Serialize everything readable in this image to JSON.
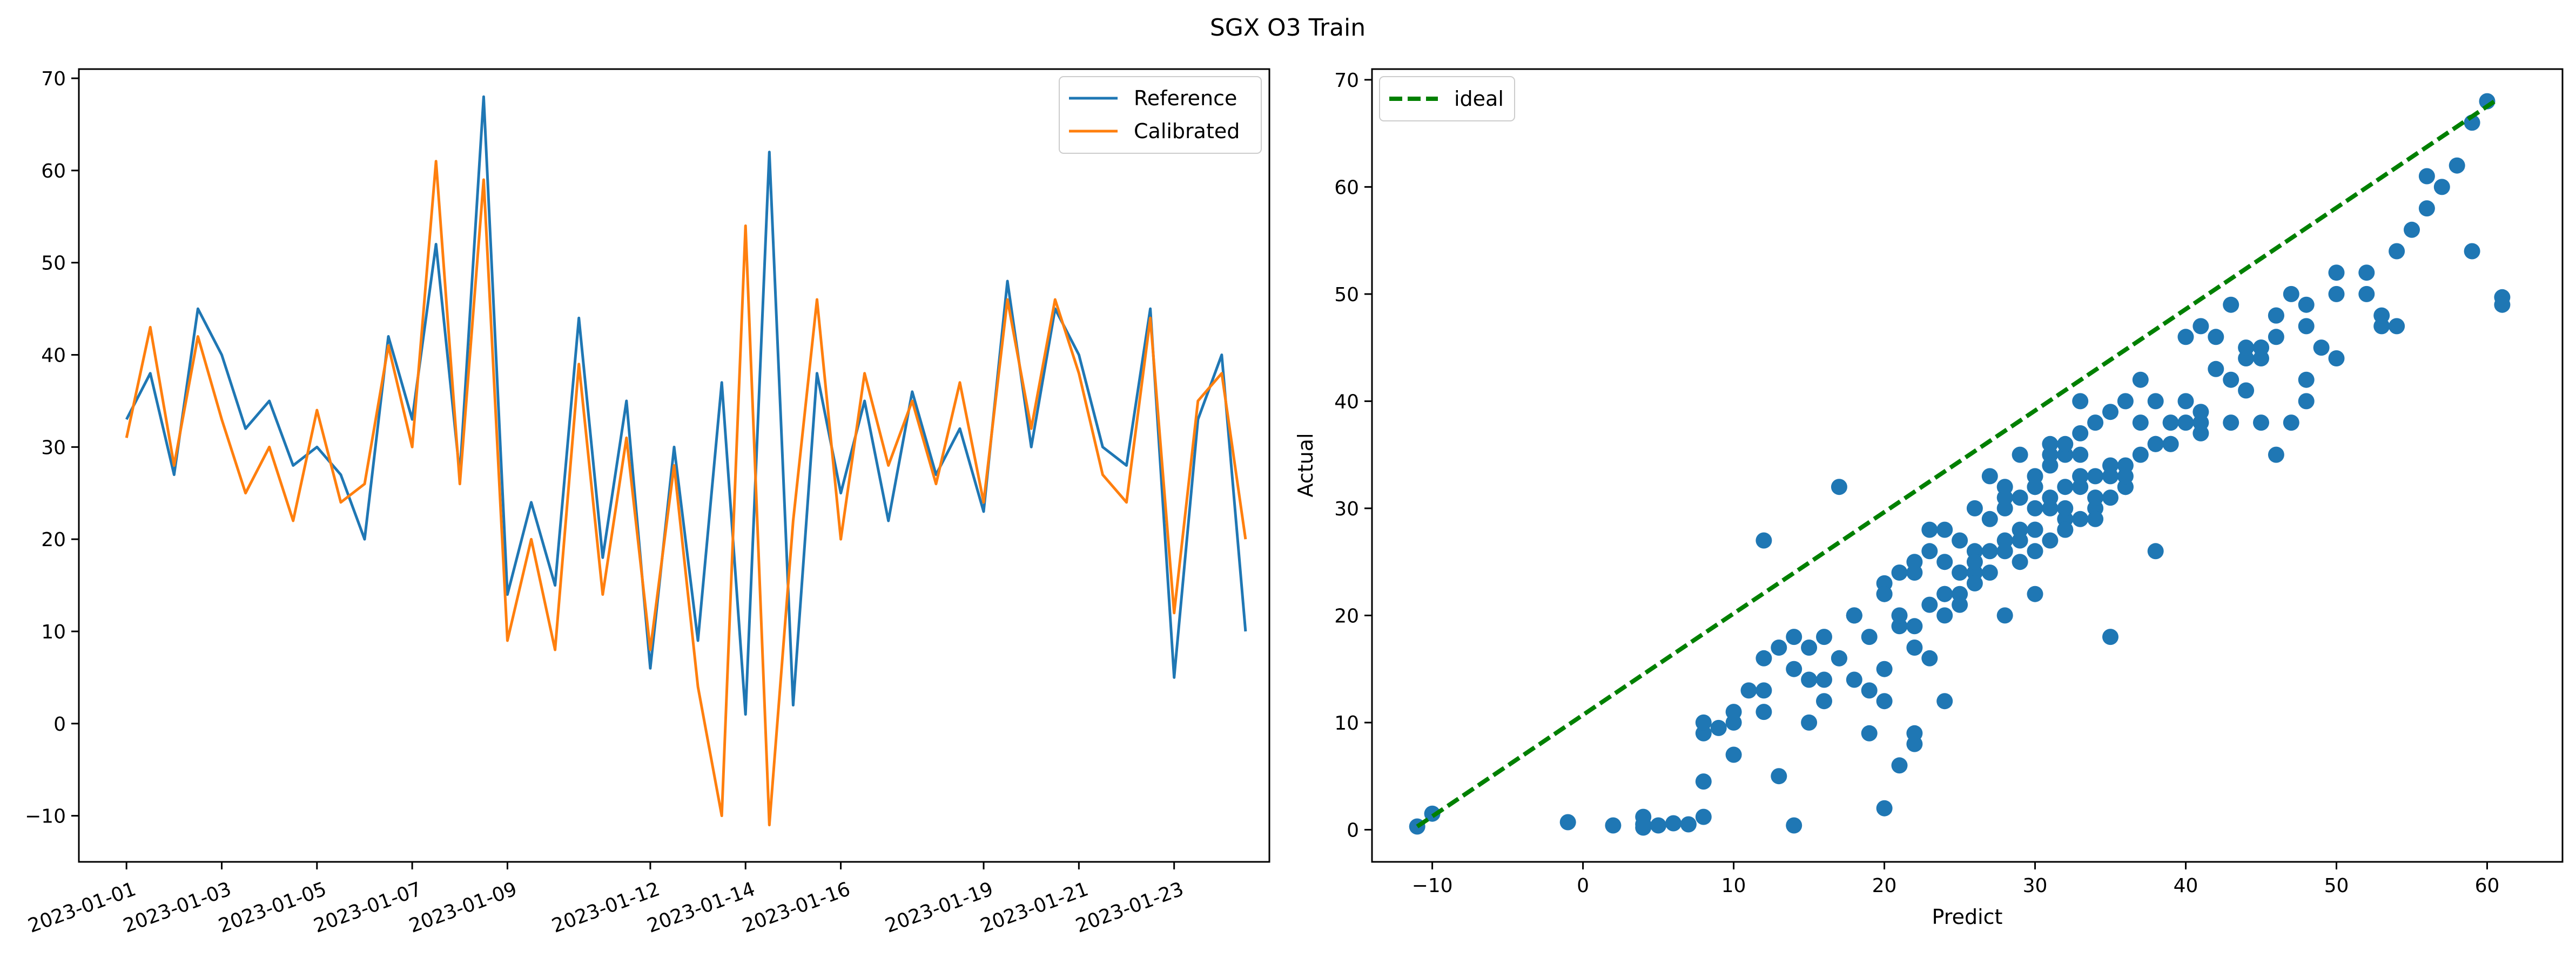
{
  "figure": {
    "title": "SGX O3 Train"
  },
  "colors": {
    "reference": "#1f77b4",
    "calibrated": "#ff7f0e",
    "scatter": "#1f77b4",
    "ideal": "#008000"
  },
  "chart_data": [
    {
      "type": "line",
      "title": "",
      "xlabel": "",
      "ylabel": "",
      "x_type": "date",
      "x_ticks": [
        "2023-01-01",
        "2023-01-03",
        "2023-01-05",
        "2023-01-07",
        "2023-01-09",
        "2023-01-12",
        "2023-01-14",
        "2023-01-16",
        "2023-01-19",
        "2023-01-21",
        "2023-01-23"
      ],
      "x_range": [
        "2022-12-31",
        "2023-01-25"
      ],
      "ylim": [
        -15,
        71
      ],
      "y_ticks": [
        -10,
        0,
        10,
        20,
        30,
        40,
        50,
        60,
        70
      ],
      "grid": false,
      "legend": "top-right",
      "series": [
        {
          "name": "Reference",
          "color": "#1f77b4",
          "x": [
            "2023-01-01",
            "2023-01-01",
            "2023-01-02",
            "2023-01-02",
            "2023-01-03",
            "2023-01-03",
            "2023-01-04",
            "2023-01-04",
            "2023-01-05",
            "2023-01-05",
            "2023-01-06",
            "2023-01-06",
            "2023-01-07",
            "2023-01-07",
            "2023-01-08",
            "2023-01-08",
            "2023-01-09",
            "2023-01-09",
            "2023-01-10",
            "2023-01-10",
            "2023-01-11",
            "2023-01-11",
            "2023-01-12",
            "2023-01-12",
            "2023-01-13",
            "2023-01-13",
            "2023-01-14",
            "2023-01-14",
            "2023-01-15",
            "2023-01-15",
            "2023-01-16",
            "2023-01-16",
            "2023-01-17",
            "2023-01-17",
            "2023-01-18",
            "2023-01-18",
            "2023-01-19",
            "2023-01-19",
            "2023-01-20",
            "2023-01-20",
            "2023-01-21",
            "2023-01-21",
            "2023-01-22",
            "2023-01-22",
            "2023-01-23",
            "2023-01-23",
            "2023-01-24",
            "2023-01-24"
          ],
          "y": [
            33,
            38,
            27,
            45,
            40,
            32,
            35,
            28,
            30,
            27,
            20,
            42,
            33,
            52,
            27,
            68,
            14,
            24,
            15,
            44,
            18,
            35,
            6,
            30,
            9,
            37,
            1,
            62,
            2,
            38,
            25,
            35,
            22,
            36,
            27,
            32,
            23,
            48,
            30,
            45,
            40,
            30,
            28,
            45,
            5,
            33,
            40,
            10
          ]
        },
        {
          "name": "Calibrated",
          "color": "#ff7f0e",
          "x": [
            "2023-01-01",
            "2023-01-01",
            "2023-01-02",
            "2023-01-02",
            "2023-01-03",
            "2023-01-03",
            "2023-01-04",
            "2023-01-04",
            "2023-01-05",
            "2023-01-05",
            "2023-01-06",
            "2023-01-06",
            "2023-01-07",
            "2023-01-07",
            "2023-01-08",
            "2023-01-08",
            "2023-01-09",
            "2023-01-09",
            "2023-01-10",
            "2023-01-10",
            "2023-01-11",
            "2023-01-11",
            "2023-01-12",
            "2023-01-12",
            "2023-01-13",
            "2023-01-13",
            "2023-01-14",
            "2023-01-14",
            "2023-01-15",
            "2023-01-15",
            "2023-01-16",
            "2023-01-16",
            "2023-01-17",
            "2023-01-17",
            "2023-01-18",
            "2023-01-18",
            "2023-01-19",
            "2023-01-19",
            "2023-01-20",
            "2023-01-20",
            "2023-01-21",
            "2023-01-21",
            "2023-01-22",
            "2023-01-22",
            "2023-01-23",
            "2023-01-23",
            "2023-01-24",
            "2023-01-24"
          ],
          "y": [
            31,
            43,
            28,
            42,
            33,
            25,
            30,
            22,
            34,
            24,
            26,
            41,
            30,
            61,
            26,
            59,
            9,
            20,
            8,
            39,
            14,
            31,
            8,
            28,
            4,
            -10,
            54,
            -11,
            22,
            46,
            20,
            38,
            28,
            35,
            26,
            37,
            24,
            46,
            32,
            46,
            38,
            27,
            24,
            44,
            12,
            35,
            38,
            20
          ]
        }
      ]
    },
    {
      "type": "scatter",
      "title": "",
      "xlabel": "Predict",
      "ylabel": "Actual",
      "xlim": [
        -14,
        65
      ],
      "ylim": [
        -3,
        71
      ],
      "x_ticks": [
        -10,
        0,
        10,
        20,
        30,
        40,
        50,
        60
      ],
      "y_ticks": [
        0,
        10,
        20,
        30,
        40,
        50,
        60,
        70
      ],
      "grid": false,
      "legend": "top-left",
      "ideal": {
        "name": "ideal",
        "x": [
          -11,
          60.5
        ],
        "y": [
          0.3,
          68
        ]
      },
      "points": {
        "x": [
          -11,
          -10,
          -1,
          2,
          4,
          4,
          4,
          5,
          6,
          7,
          8,
          8,
          9,
          10,
          11,
          12,
          13,
          14,
          15,
          16,
          17,
          18,
          19,
          20,
          21,
          22,
          23,
          24,
          25,
          26,
          27,
          28,
          29,
          30,
          31,
          32,
          33,
          34,
          35,
          36,
          37,
          38,
          39,
          40,
          41,
          42,
          43,
          44,
          45,
          46,
          47,
          48,
          49,
          50,
          52,
          53,
          54,
          55,
          56,
          57,
          58,
          59,
          60,
          61,
          28,
          30,
          31,
          32,
          33,
          34,
          29,
          30,
          31,
          32,
          33,
          35,
          36,
          38,
          39,
          40,
          41,
          44,
          45,
          46,
          48,
          50,
          27,
          26,
          25,
          24,
          22,
          20,
          18,
          16,
          14,
          12,
          10,
          8,
          21,
          23,
          25,
          27,
          29,
          31,
          33,
          35,
          37,
          39,
          41,
          43,
          45,
          30,
          32,
          34,
          36,
          38,
          28,
          30,
          32,
          34,
          24,
          26,
          28,
          30,
          32,
          34,
          36,
          20,
          22,
          24,
          26,
          28,
          30,
          32,
          18,
          20,
          22,
          24,
          26,
          42,
          44,
          46,
          48,
          50,
          15,
          17,
          19,
          21,
          12,
          13,
          14,
          16,
          18,
          19,
          20,
          22,
          23,
          40,
          41,
          43,
          45,
          46,
          47,
          48,
          52,
          53,
          54,
          56,
          59,
          61,
          8,
          10,
          12,
          15,
          17,
          20,
          22,
          24,
          28,
          30,
          35,
          38,
          21,
          23,
          25,
          27,
          29,
          33,
          37,
          31,
          33,
          35,
          29,
          31,
          33,
          36
        ],
        "y": [
          0.3,
          1.5,
          0.7,
          0.4,
          0.2,
          1.2,
          0.5,
          0.4,
          0.6,
          0.5,
          1.2,
          9,
          9.5,
          10,
          13,
          27,
          5,
          0.4,
          10,
          12,
          32,
          20,
          9,
          15,
          6,
          8,
          28,
          22,
          24,
          26,
          33,
          32,
          28,
          30,
          35,
          32,
          29,
          30,
          34,
          34,
          42,
          40,
          36,
          38,
          38,
          46,
          49,
          44,
          44,
          35,
          38,
          42,
          45,
          52,
          50,
          47,
          54,
          56,
          58,
          60,
          62,
          66,
          68,
          49.7,
          27,
          28,
          31,
          29,
          32,
          33,
          25,
          26,
          27,
          28,
          33,
          31,
          32,
          36,
          38,
          40,
          39,
          41,
          45,
          46,
          47,
          44,
          26,
          24,
          22,
          20,
          17,
          12,
          14,
          18,
          15,
          11,
          7,
          4.5,
          19,
          16,
          21,
          24,
          27,
          30,
          33,
          33,
          35,
          36,
          37,
          38,
          38,
          33,
          35,
          38,
          40,
          36,
          30,
          32,
          28,
          31,
          22,
          25,
          26,
          28,
          30,
          29,
          32,
          23,
          25,
          28,
          30,
          31,
          32,
          36,
          20,
          22,
          24,
          25,
          23,
          43,
          45,
          48,
          49,
          50,
          17,
          16,
          18,
          20,
          16,
          17,
          18,
          14,
          20,
          13,
          22,
          19,
          21,
          46,
          47,
          42,
          45,
          48,
          50,
          40,
          52,
          48,
          47,
          61,
          54,
          49,
          10,
          11,
          13,
          14,
          16,
          2,
          9,
          12,
          20,
          22,
          18,
          26,
          24,
          26,
          27,
          29,
          31,
          35,
          38,
          34,
          37,
          39,
          35,
          36,
          40,
          33
        ]
      }
    }
  ]
}
